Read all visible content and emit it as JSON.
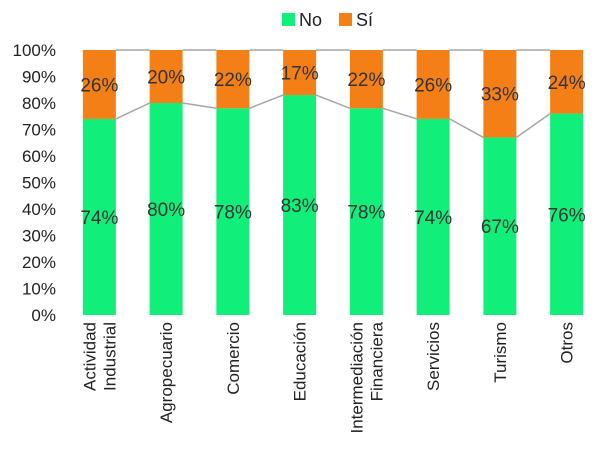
{
  "chart_data": {
    "type": "bar",
    "stacked": true,
    "percent_axis": true,
    "categories": [
      [
        "Actividad",
        "Industrial"
      ],
      [
        "Agropecuario"
      ],
      [
        "Comercio"
      ],
      [
        "Educación"
      ],
      [
        "Intermediación",
        "Financiera"
      ],
      [
        "Servicios"
      ],
      [
        "Turismo"
      ],
      [
        "Otros"
      ]
    ],
    "series": [
      {
        "name": "No",
        "color": "#11EE7A",
        "values": [
          74,
          80,
          78,
          83,
          78,
          74,
          67,
          76
        ],
        "labels": [
          "74%",
          "80%",
          "78%",
          "83%",
          "78%",
          "74%",
          "67%",
          "76%"
        ]
      },
      {
        "name": "Sí",
        "color": "#F57F17",
        "values": [
          26,
          20,
          22,
          17,
          22,
          26,
          33,
          24
        ],
        "labels": [
          "26%",
          "20%",
          "22%",
          "17%",
          "22%",
          "26%",
          "33%",
          "24%"
        ]
      }
    ],
    "y_ticks": [
      "0%",
      "10%",
      "20%",
      "30%",
      "40%",
      "50%",
      "60%",
      "70%",
      "80%",
      "90%",
      "100%"
    ],
    "ylim": [
      0,
      100
    ],
    "series_lines": true,
    "grid": false,
    "legend": "top-center",
    "title": "",
    "xlabel": "",
    "ylabel": ""
  }
}
